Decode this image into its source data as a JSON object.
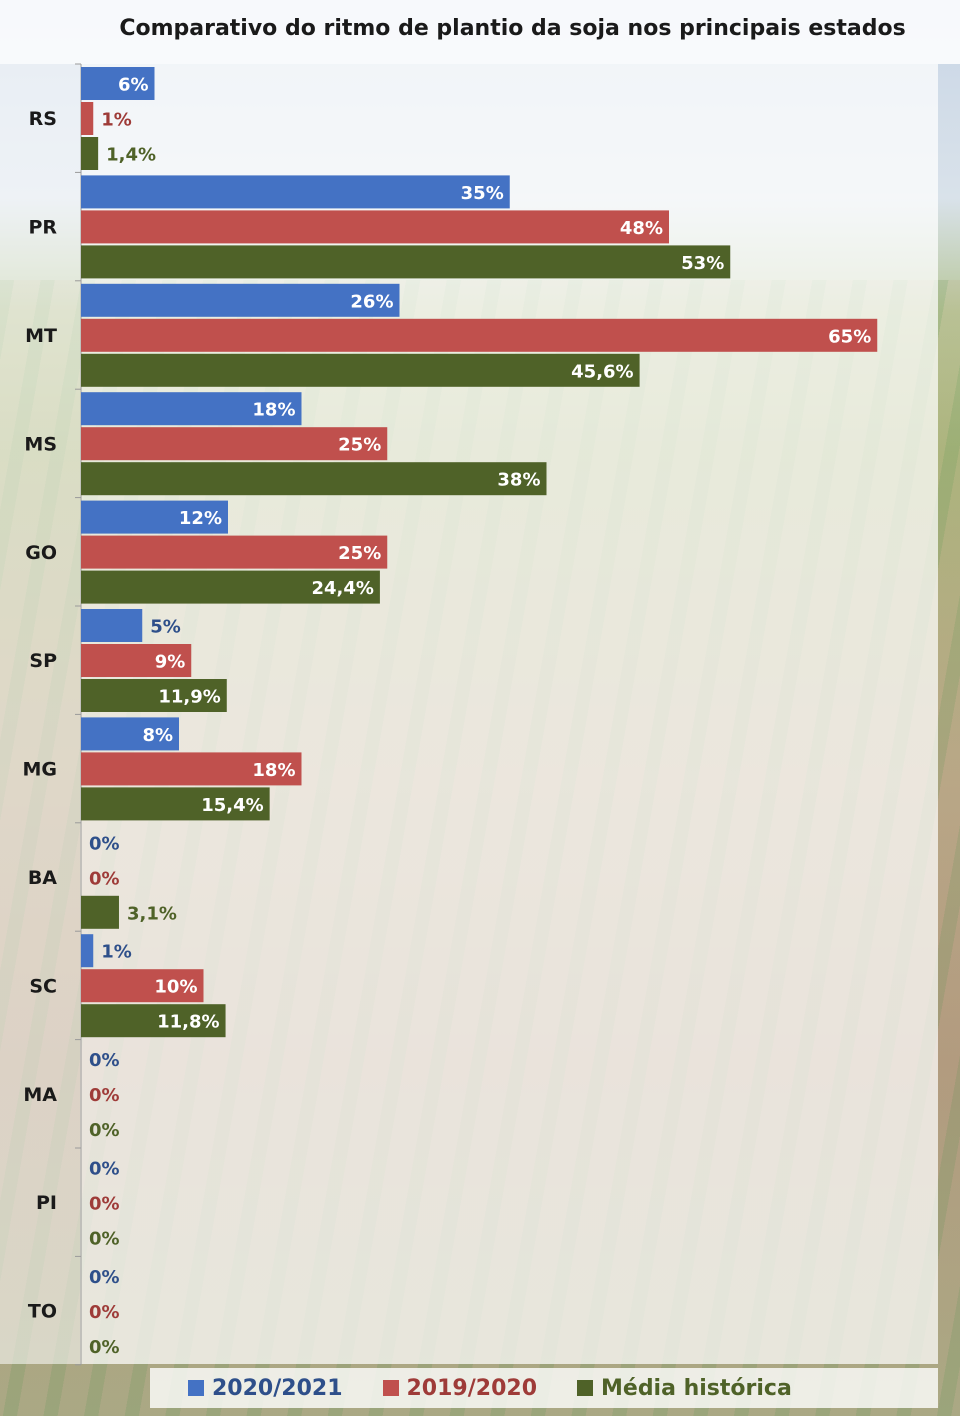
{
  "chart_data": {
    "type": "bar",
    "orientation": "horizontal",
    "title": "Comparativo do ritmo de plantio da soja nos principais estados",
    "categories": [
      "RS",
      "PR",
      "MT",
      "MS",
      "GO",
      "SP",
      "MG",
      "BA",
      "SC",
      "MA",
      "PI",
      "TO"
    ],
    "series": [
      {
        "name": "2020/2021",
        "color": "#4472c4",
        "values": [
          6,
          35,
          26,
          18,
          12,
          5,
          8,
          0,
          1,
          0,
          0,
          0
        ],
        "labels": [
          "6%",
          "35%",
          "26%",
          "18%",
          "12%",
          "5%",
          "8%",
          "0%",
          "1%",
          "0%",
          "0%",
          "0%"
        ]
      },
      {
        "name": "2019/2020",
        "color": "#c0504d",
        "values": [
          1,
          48,
          65,
          25,
          25,
          9,
          18,
          0,
          10,
          0,
          0,
          0
        ],
        "labels": [
          "1%",
          "48%",
          "65%",
          "25%",
          "25%",
          "9%",
          "18%",
          "0%",
          "10%",
          "0%",
          "0%",
          "0%"
        ]
      },
      {
        "name": "Média histórica",
        "color": "#4f6228",
        "values": [
          1.4,
          53,
          45.6,
          38,
          24.4,
          11.9,
          15.4,
          3.1,
          11.8,
          0,
          0,
          0
        ],
        "labels": [
          "1,4%",
          "53%",
          "45,6%",
          "38%",
          "24,4%",
          "11,9%",
          "15,4%",
          "3,1%",
          "11,8%",
          "0%",
          "0%",
          "0%"
        ]
      }
    ],
    "xlim": [
      0,
      70
    ],
    "grid": false,
    "legend_position": "bottom"
  }
}
